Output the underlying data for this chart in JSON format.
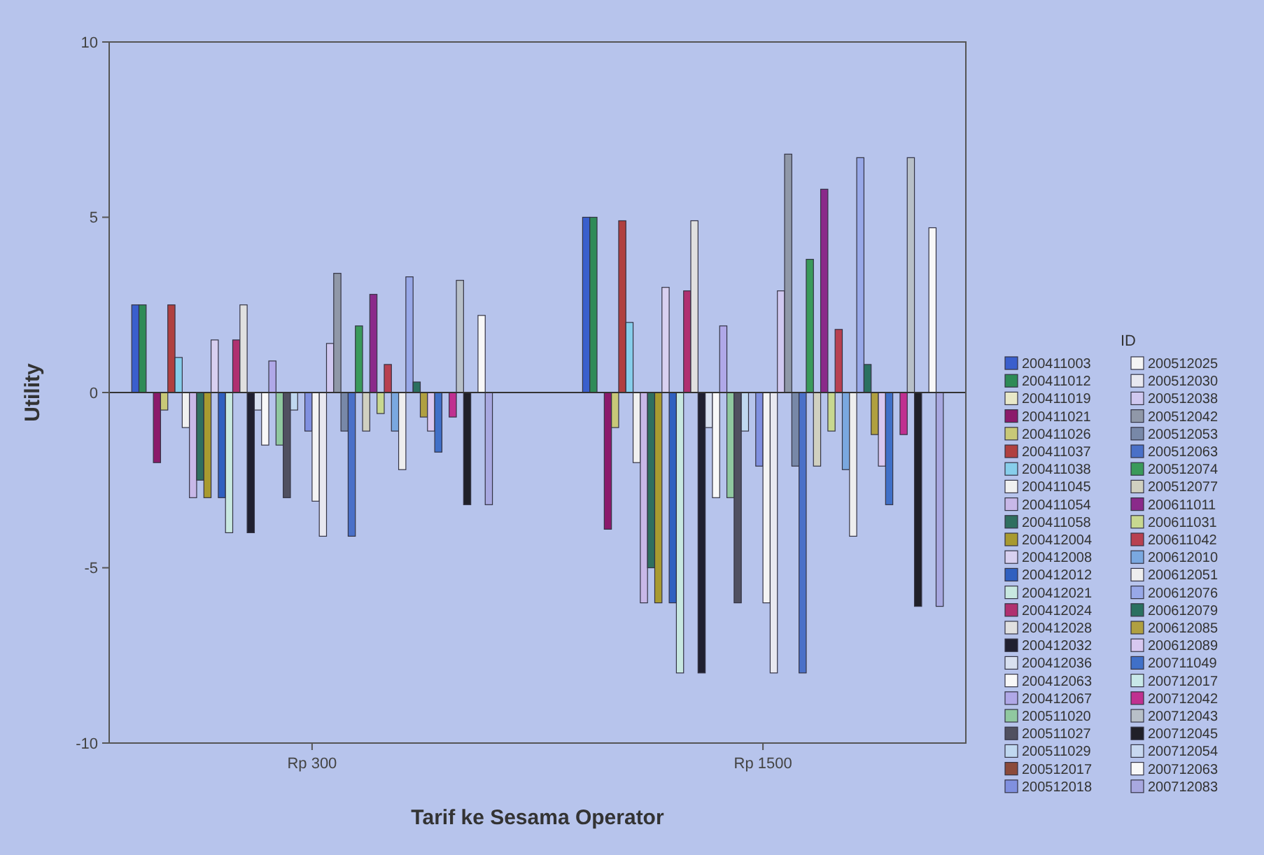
{
  "chart_data": {
    "type": "bar",
    "xlabel": "Tarif ke Sesama Operator",
    "ylabel": "Utility",
    "legend_title": "ID",
    "legend": "right",
    "ref_lines": [
      {
        "axis": "y",
        "value": 0
      }
    ],
    "categories": [
      "Rp 300",
      "Rp 1500"
    ],
    "ylim": [
      -10,
      10
    ],
    "yticks": [
      -10,
      -5,
      0,
      5,
      10
    ],
    "series": [
      {
        "name": "200411003",
        "color": "#3a5fcd",
        "values": [
          2.5,
          5.0
        ]
      },
      {
        "name": "200411012",
        "color": "#2e8b57",
        "values": [
          2.5,
          5.0
        ]
      },
      {
        "name": "200411019",
        "color": "#e8e8c8",
        "values": [
          0,
          0
        ]
      },
      {
        "name": "200411021",
        "color": "#8b1a6b",
        "values": [
          -2.0,
          -3.9
        ]
      },
      {
        "name": "200411026",
        "color": "#c8c878",
        "values": [
          -0.5,
          -1.0
        ]
      },
      {
        "name": "200411037",
        "color": "#b04040",
        "values": [
          2.5,
          4.9
        ]
      },
      {
        "name": "200411038",
        "color": "#87ceeb",
        "values": [
          1.0,
          2.0
        ]
      },
      {
        "name": "200411045",
        "color": "#f0f0f0",
        "values": [
          -1.0,
          -2.0
        ]
      },
      {
        "name": "200411054",
        "color": "#c8b8e8",
        "values": [
          -3.0,
          -6.0
        ]
      },
      {
        "name": "200411058",
        "color": "#2f6f5f",
        "values": [
          -2.5,
          -5.0
        ]
      },
      {
        "name": "200412004",
        "color": "#a89a30",
        "values": [
          -3.0,
          -6.0
        ]
      },
      {
        "name": "200412008",
        "color": "#d8d0f0",
        "values": [
          1.5,
          3.0
        ]
      },
      {
        "name": "200412012",
        "color": "#3060c0",
        "values": [
          -3.0,
          -6.0
        ]
      },
      {
        "name": "200412021",
        "color": "#c8e8e0",
        "values": [
          -4.0,
          -8.0
        ]
      },
      {
        "name": "200412024",
        "color": "#b03070",
        "values": [
          1.5,
          2.9
        ]
      },
      {
        "name": "200412028",
        "color": "#e0e0e0",
        "values": [
          2.5,
          4.9
        ]
      },
      {
        "name": "200412032",
        "color": "#202030",
        "values": [
          -4.0,
          -8.0
        ]
      },
      {
        "name": "200412036",
        "color": "#d8e0f0",
        "values": [
          -0.5,
          -1.0
        ]
      },
      {
        "name": "200412063",
        "color": "#f8f8f8",
        "values": [
          -1.5,
          -3.0
        ]
      },
      {
        "name": "200412067",
        "color": "#b0a8e8",
        "values": [
          0.9,
          1.9
        ]
      },
      {
        "name": "200511020",
        "color": "#90c8a0",
        "values": [
          -1.5,
          -3.0
        ]
      },
      {
        "name": "200511027",
        "color": "#505060",
        "values": [
          -3.0,
          -6.0
        ]
      },
      {
        "name": "200511029",
        "color": "#c0d8f0",
        "values": [
          -0.5,
          -1.1
        ]
      },
      {
        "name": "200512017",
        "color": "#8b4a3a",
        "values": [
          0,
          0
        ]
      },
      {
        "name": "200512018",
        "color": "#8090e0",
        "values": [
          -1.1,
          -2.1
        ]
      },
      {
        "name": "200512025",
        "color": "#f4f4f4",
        "values": [
          -3.1,
          -6.0
        ]
      },
      {
        "name": "200512030",
        "color": "#e8e8f0",
        "values": [
          -4.1,
          -8.0
        ]
      },
      {
        "name": "200512038",
        "color": "#d0c8f0",
        "values": [
          1.4,
          2.9
        ]
      },
      {
        "name": "200512042",
        "color": "#9098a8",
        "values": [
          3.4,
          6.8
        ]
      },
      {
        "name": "200512053",
        "color": "#7888a8",
        "values": [
          -1.1,
          -2.1
        ]
      },
      {
        "name": "200512063",
        "color": "#4a70c8",
        "values": [
          -4.1,
          -8.0
        ]
      },
      {
        "name": "200512074",
        "color": "#3a9a5a",
        "values": [
          1.9,
          3.8
        ]
      },
      {
        "name": "200512077",
        "color": "#d0d0c0",
        "values": [
          -1.1,
          -2.1
        ]
      },
      {
        "name": "200611011",
        "color": "#8a2a8a",
        "values": [
          2.8,
          5.8
        ]
      },
      {
        "name": "200611031",
        "color": "#c8d890",
        "values": [
          -0.6,
          -1.1
        ]
      },
      {
        "name": "200611042",
        "color": "#b84050",
        "values": [
          0.8,
          1.8
        ]
      },
      {
        "name": "200612010",
        "color": "#7aa8e0",
        "values": [
          -1.1,
          -2.2
        ]
      },
      {
        "name": "200612051",
        "color": "#eeeeee",
        "values": [
          -2.2,
          -4.1
        ]
      },
      {
        "name": "200612076",
        "color": "#98a8e8",
        "values": [
          3.3,
          6.7
        ]
      },
      {
        "name": "200612079",
        "color": "#2a7060",
        "values": [
          0.3,
          0.8
        ]
      },
      {
        "name": "200612085",
        "color": "#b0a040",
        "values": [
          -0.7,
          -1.2
        ]
      },
      {
        "name": "200612089",
        "color": "#d8c8f0",
        "values": [
          -1.1,
          -2.1
        ]
      },
      {
        "name": "200711049",
        "color": "#4070c8",
        "values": [
          -1.7,
          -3.2
        ]
      },
      {
        "name": "200712017",
        "color": "#c8e8e8",
        "values": [
          0,
          0
        ]
      },
      {
        "name": "200712042",
        "color": "#c03090",
        "values": [
          -0.7,
          -1.2
        ]
      },
      {
        "name": "200712043",
        "color": "#b8c0c8",
        "values": [
          3.2,
          6.7
        ]
      },
      {
        "name": "200712045",
        "color": "#202028",
        "values": [
          -3.2,
          -6.1
        ]
      },
      {
        "name": "200712054",
        "color": "#c8d8f0",
        "values": [
          0,
          0
        ]
      },
      {
        "name": "200712063",
        "color": "#f8f8f8",
        "values": [
          2.2,
          4.7
        ]
      },
      {
        "name": "200712083",
        "color": "#a8a8e0",
        "values": [
          -3.2,
          -6.1
        ]
      }
    ]
  }
}
